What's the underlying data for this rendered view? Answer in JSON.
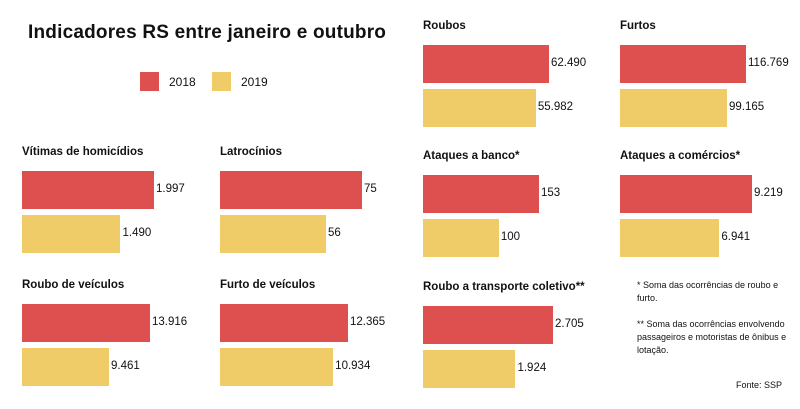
{
  "header": {
    "title": "Indicadores RS entre janeiro e outubro"
  },
  "legend": [
    {
      "label": "2018",
      "color": "#de5050"
    },
    {
      "label": "2019",
      "color": "#f0cc68"
    }
  ],
  "chart_data": [
    {
      "type": "bar",
      "title": "Vítimas de homicídios",
      "categories": [
        "2018",
        "2019"
      ],
      "values": [
        1997,
        1490
      ],
      "labels": [
        "1.997",
        "1.490"
      ]
    },
    {
      "type": "bar",
      "title": "Latrocínios",
      "categories": [
        "2018",
        "2019"
      ],
      "values": [
        75,
        56
      ],
      "labels": [
        "75",
        "56"
      ]
    },
    {
      "type": "bar",
      "title": "Roubo de veículos",
      "categories": [
        "2018",
        "2019"
      ],
      "values": [
        13916,
        9461
      ],
      "labels": [
        "13.916",
        "9.461"
      ]
    },
    {
      "type": "bar",
      "title": "Furto de veículos",
      "categories": [
        "2018",
        "2019"
      ],
      "values": [
        12365,
        10934
      ],
      "labels": [
        "12.365",
        "10.934"
      ]
    },
    {
      "type": "bar",
      "title": "Roubos",
      "categories": [
        "2018",
        "2019"
      ],
      "values": [
        62490,
        55982
      ],
      "labels": [
        "62.490",
        "55.982"
      ]
    },
    {
      "type": "bar",
      "title": "Furtos",
      "categories": [
        "2018",
        "2019"
      ],
      "values": [
        116769,
        99165
      ],
      "labels": [
        "116.769",
        "99.165"
      ]
    },
    {
      "type": "bar",
      "title": "Ataques a banco*",
      "categories": [
        "2018",
        "2019"
      ],
      "values": [
        153,
        100
      ],
      "labels": [
        "153",
        "100"
      ]
    },
    {
      "type": "bar",
      "title": "Ataques a comércios*",
      "categories": [
        "2018",
        "2019"
      ],
      "values": [
        9219,
        6941
      ],
      "labels": [
        "9.219",
        "6.941"
      ]
    },
    {
      "type": "bar",
      "title": "Roubo a transporte coletivo**",
      "categories": [
        "2018",
        "2019"
      ],
      "values": [
        2705,
        1924
      ],
      "labels": [
        "2.705",
        "1.924"
      ]
    }
  ],
  "notes": {
    "note1": "* Soma das ocorrências de roubo e furto.",
    "note2": "** Soma das ocorrências envolvendo passageiros e motoristas de ônibus e lotação."
  },
  "source": "Fonte: SSP"
}
